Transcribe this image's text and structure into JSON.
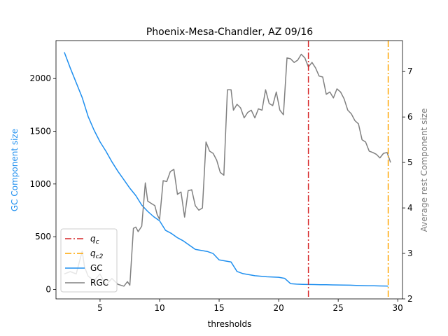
{
  "chart_data": {
    "type": "line",
    "title": "Phoenix-Mesa-Chandler, AZ 09/16",
    "xlabel": "thresholds",
    "ylabel_left": "GC Component size",
    "ylabel_right": "Average rest Component size",
    "xlim": [
      1.3,
      30.4
    ],
    "ylim_left": [
      -90,
      2360
    ],
    "ylim_right": [
      2.0,
      7.68
    ],
    "x_ticks": [
      5,
      10,
      15,
      20,
      25,
      30
    ],
    "y_ticks_left": [
      0,
      500,
      1000,
      1500,
      2000
    ],
    "y_ticks_right": [
      2,
      3,
      4,
      5,
      6,
      7
    ],
    "grid": false,
    "legend_position": "lower left",
    "colors": {
      "gc": "#1f8fef",
      "rgc": "#808080",
      "qc": "#d62728",
      "qc2": "#ffa500",
      "label_left": "#1f8fef",
      "label_right": "#808080"
    },
    "legend": [
      {
        "label": "q",
        "sub": "c",
        "style": "dashdot",
        "color": "#d62728"
      },
      {
        "label": "q",
        "sub": "c2",
        "style": "dashdot",
        "color": "#ffa500"
      },
      {
        "label": "GC",
        "sub": "",
        "style": "solid",
        "color": "#1f8fef"
      },
      {
        "label": "RGC",
        "sub": "",
        "style": "solid",
        "color": "#808080"
      }
    ],
    "vlines": [
      {
        "name": "q_c",
        "x": 22.5
      },
      {
        "name": "q_c2",
        "x": 29.2
      }
    ],
    "series": [
      {
        "name": "GC",
        "axis": "left",
        "x": [
          2.0,
          2.5,
          3.0,
          3.5,
          4.0,
          4.5,
          5.0,
          5.5,
          6.0,
          6.5,
          7.0,
          7.5,
          8.0,
          8.5,
          9.0,
          9.5,
          10.0,
          10.5,
          11.0,
          11.5,
          12.0,
          12.5,
          13.0,
          13.5,
          14.0,
          14.5,
          15.0,
          15.5,
          16.0,
          16.5,
          17.0,
          17.5,
          18.0,
          18.5,
          19.0,
          19.5,
          20.0,
          20.5,
          21.0,
          21.5,
          22.0,
          22.5,
          23.0,
          23.5,
          24.0,
          24.5,
          25.0,
          25.5,
          26.0,
          26.5,
          27.0,
          27.5,
          28.0,
          28.5,
          29.0,
          29.2
        ],
        "values": [
          2250,
          2100,
          1960,
          1820,
          1640,
          1510,
          1400,
          1310,
          1210,
          1120,
          1040,
          960,
          890,
          800,
          740,
          690,
          650,
          560,
          530,
          490,
          460,
          420,
          380,
          370,
          360,
          340,
          280,
          270,
          260,
          170,
          150,
          140,
          130,
          125,
          120,
          118,
          115,
          105,
          55,
          50,
          48,
          47,
          46,
          45,
          44,
          43,
          42,
          41,
          40,
          38,
          36,
          35,
          34,
          33,
          32,
          31
        ]
      },
      {
        "name": "RGC",
        "axis": "right",
        "x": [
          2.0,
          2.5,
          3.0,
          3.5,
          3.7,
          4.0,
          4.5,
          5.0,
          5.5,
          6.0,
          6.5,
          7.0,
          7.3,
          7.5,
          7.8,
          8.0,
          8.2,
          8.5,
          8.8,
          9.0,
          9.3,
          9.6,
          9.8,
          10.0,
          10.3,
          10.6,
          10.9,
          11.2,
          11.5,
          11.8,
          12.1,
          12.4,
          12.7,
          13.0,
          13.3,
          13.6,
          13.9,
          14.2,
          14.5,
          14.8,
          15.1,
          15.4,
          15.7,
          16.0,
          16.2,
          16.5,
          16.8,
          17.1,
          17.4,
          17.7,
          18.0,
          18.3,
          18.6,
          18.9,
          19.2,
          19.5,
          19.8,
          20.1,
          20.4,
          20.7,
          21.0,
          21.3,
          21.6,
          21.9,
          22.2,
          22.5,
          22.8,
          23.1,
          23.4,
          23.7,
          24.0,
          24.3,
          24.6,
          24.9,
          25.2,
          25.5,
          25.8,
          26.1,
          26.4,
          26.7,
          27.0,
          27.3,
          27.6,
          27.9,
          28.2,
          28.5,
          28.8,
          29.1,
          29.4
        ],
        "values": [
          2.55,
          2.6,
          2.55,
          3.05,
          2.7,
          2.5,
          2.4,
          2.55,
          2.3,
          2.45,
          2.32,
          2.28,
          2.38,
          2.3,
          3.55,
          3.58,
          3.48,
          3.6,
          4.55,
          4.15,
          4.1,
          4.05,
          3.85,
          3.75,
          4.6,
          4.58,
          4.8,
          4.85,
          4.3,
          4.35,
          3.8,
          4.38,
          4.4,
          4.05,
          3.95,
          4.0,
          5.45,
          5.25,
          5.2,
          5.05,
          4.78,
          4.72,
          6.6,
          6.6,
          6.15,
          6.28,
          6.2,
          5.98,
          6.1,
          6.15,
          5.98,
          6.18,
          6.15,
          6.6,
          6.3,
          6.25,
          6.55,
          6.15,
          6.05,
          7.3,
          7.28,
          7.2,
          7.25,
          7.38,
          7.3,
          7.1,
          7.2,
          7.08,
          6.9,
          6.88,
          6.5,
          6.55,
          6.42,
          6.62,
          6.55,
          6.4,
          6.15,
          6.07,
          5.92,
          5.85,
          5.5,
          5.45,
          5.25,
          5.22,
          5.18,
          5.1,
          5.2,
          5.22,
          5.0
        ]
      }
    ]
  }
}
